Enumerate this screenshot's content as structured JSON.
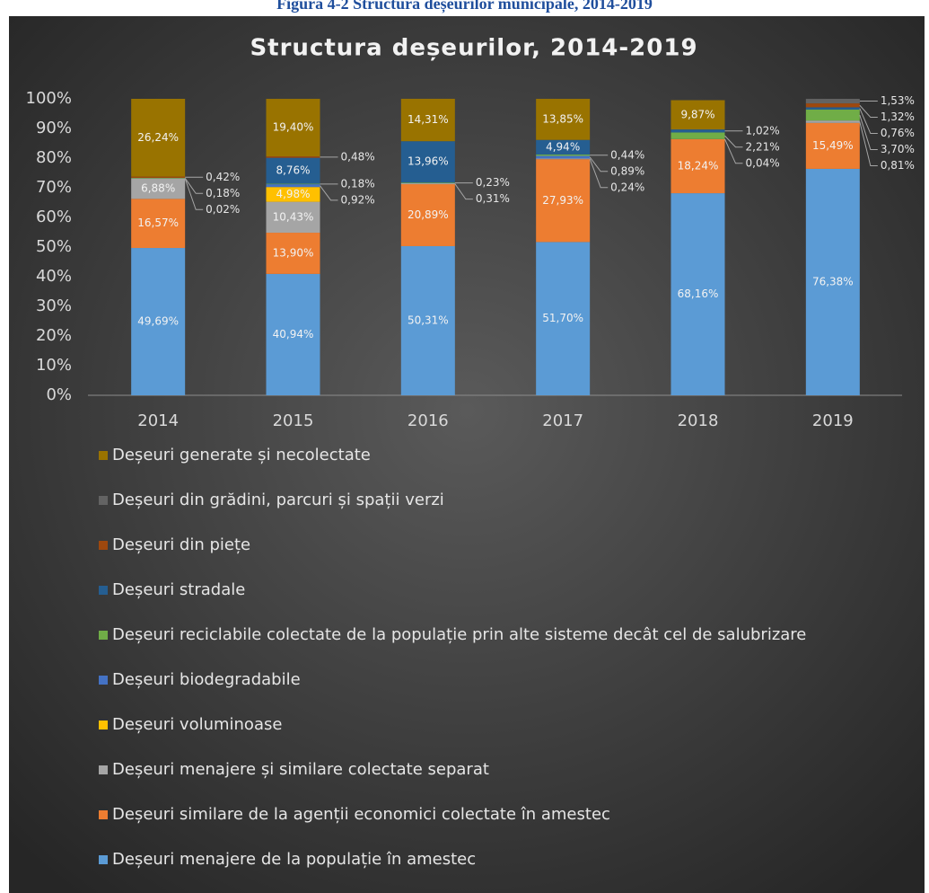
{
  "page_title": "Figura 4-2 Structura deșeurilor municipale, 2014-2019",
  "chart_data": {
    "type": "stacked_bar",
    "title": "Structura deșeurilor, 2014-2019",
    "categories": [
      "2014",
      "2015",
      "2016",
      "2017",
      "2018",
      "2019"
    ],
    "ylim": [
      0,
      100
    ],
    "yticks": [
      {
        "value": 0,
        "label": "0%"
      },
      {
        "value": 10,
        "label": "10%"
      },
      {
        "value": 20,
        "label": "20%"
      },
      {
        "value": 30,
        "label": "30%"
      },
      {
        "value": 40,
        "label": "40%"
      },
      {
        "value": 50,
        "label": "50%"
      },
      {
        "value": 60,
        "label": "60%"
      },
      {
        "value": 70,
        "label": "70%"
      },
      {
        "value": 80,
        "label": "80%"
      },
      {
        "value": 90,
        "label": "90%"
      },
      {
        "value": 100,
        "label": "100%"
      }
    ],
    "grid": false,
    "series": [
      {
        "name": "Deșeuri menajere de la populație în amestec",
        "color": "#5b9bd5",
        "values": [
          49.69,
          40.94,
          50.31,
          51.7,
          68.16,
          76.38
        ],
        "value_labels": [
          "49,69%",
          "40,94%",
          "50,31%",
          "51,70%",
          "68,16%",
          "76,38%"
        ]
      },
      {
        "name": "Deșeuri similare de la agenții economici colectate în amestec",
        "color": "#ed7d31",
        "values": [
          16.57,
          13.9,
          20.89,
          27.93,
          18.24,
          15.49
        ],
        "value_labels": [
          "16,57%",
          "13,90%",
          "20,89%",
          "27,93%",
          "18,24%",
          "15,49%"
        ]
      },
      {
        "name": "Deșeuri menajere și similare colectate separat",
        "color": "#a5a5a5",
        "values": [
          6.88,
          10.43,
          0.31,
          0.24,
          0.04,
          0.81
        ],
        "value_labels": [
          "6,88%",
          "10,43%",
          "0,31%",
          "0,24%",
          "0,04%",
          "0,81%"
        ]
      },
      {
        "name": "Deșeuri voluminoase",
        "color": "#ffc000",
        "values": [
          null,
          4.98,
          null,
          null,
          null,
          null
        ],
        "value_labels": [
          null,
          "4,98%",
          null,
          null,
          null,
          null
        ]
      },
      {
        "name": "Deșeuri biodegradabile",
        "color": "#4472c4",
        "values": [
          0.02,
          0.92,
          null,
          0.89,
          null,
          null
        ],
        "value_labels": [
          "0,02%",
          "0,92%",
          null,
          "0,89%",
          null,
          null
        ]
      },
      {
        "name": "Deșeuri reciclabile colectate de la populație prin alte sisteme decât cel de salubrizare",
        "color": "#70ad47",
        "values": [
          0.18,
          0.18,
          0.23,
          0.44,
          2.21,
          3.7
        ],
        "value_labels": [
          "0,18%",
          "0,18%",
          "0,23%",
          "0,44%",
          "2,21%",
          "3,70%"
        ]
      },
      {
        "name": "Deșeuri stradale",
        "color": "#255e91",
        "values": [
          null,
          8.76,
          13.96,
          4.94,
          1.02,
          0.76
        ],
        "value_labels": [
          null,
          "8,76%",
          "13,96%",
          "4,94%",
          "1,02%",
          "0,76%"
        ]
      },
      {
        "name": "Deșeuri din piețe",
        "color": "#9e480e",
        "values": [
          0.42,
          0.48,
          null,
          null,
          null,
          1.32
        ],
        "value_labels": [
          "0,42%",
          "0,48%",
          null,
          null,
          null,
          "1,32%"
        ]
      },
      {
        "name": "Deșeuri din grădini, parcuri și spații verzi",
        "color": "#636363",
        "values": [
          null,
          null,
          null,
          null,
          null,
          1.53
        ],
        "value_labels": [
          null,
          null,
          null,
          null,
          null,
          "1,53%"
        ]
      },
      {
        "name": "Deșeuri generate și necolectate",
        "color": "#997300",
        "values": [
          26.24,
          19.4,
          14.31,
          13.85,
          9.87,
          null
        ],
        "value_labels": [
          "26,24%",
          "19,40%",
          "14,31%",
          "13,85%",
          "9,87%",
          null
        ]
      }
    ]
  }
}
